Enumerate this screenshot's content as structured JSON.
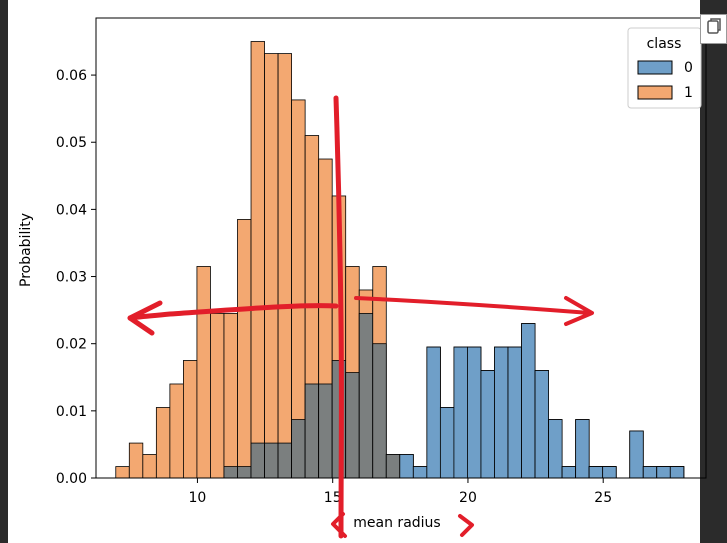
{
  "copy_button": {
    "icon": "copy-icon"
  },
  "colors": {
    "class0": "#6f9fc8",
    "class1": "#f3a871",
    "overlap": "#7b7f7f",
    "annotation": "#e21e2a",
    "background_outer": "#2b2b2b",
    "plot_bg": "#ffffff"
  },
  "chart_data": {
    "type": "bar",
    "title": "",
    "xlabel": "mean radius",
    "ylabel": "Probability",
    "xlim": [
      6.25,
      28.8
    ],
    "ylim": [
      0,
      0.0685
    ],
    "x_ticks": [
      10,
      15,
      20,
      25
    ],
    "x_tick_labels": [
      "10",
      "15",
      "20",
      "25"
    ],
    "y_ticks": [
      0.0,
      0.01,
      0.02,
      0.03,
      0.04,
      0.05,
      0.06
    ],
    "y_tick_labels": [
      "0.00",
      "0.01",
      "0.02",
      "0.03",
      "0.04",
      "0.05",
      "0.06"
    ],
    "grid": false,
    "legend": {
      "title": "class",
      "placement": "top-right",
      "entries": [
        {
          "label": "0",
          "series": 0
        },
        {
          "label": "1",
          "series": 1
        }
      ]
    },
    "bins": {
      "start": 6.981,
      "width": 0.5,
      "count": 43
    },
    "series": [
      {
        "name": "0",
        "values": [
          0,
          0,
          0,
          0,
          0,
          0,
          0,
          0,
          0.0017,
          0.0017,
          0.0052,
          0.0052,
          0.0052,
          0.0087,
          0.014,
          0.014,
          0.0175,
          0.0157,
          0.0245,
          0.02,
          0.0035,
          0.0035,
          0.0017,
          0.0195,
          0.0105,
          0.0195,
          0.0195,
          0.016,
          0.0195,
          0.0195,
          0.023,
          0.016,
          0.0087,
          0.0017,
          0.0087,
          0.0017,
          0.0017,
          0,
          0.007,
          0.0017,
          0.0017,
          0.0017,
          0
        ]
      },
      {
        "name": "1",
        "values": [
          0.0017,
          0.0052,
          0.0035,
          0.0105,
          0.014,
          0.0175,
          0.0315,
          0.0245,
          0.0245,
          0.0385,
          0.065,
          0.0632,
          0.0632,
          0.0563,
          0.051,
          0.0475,
          0.042,
          0.0315,
          0.028,
          0.0315,
          0.0035,
          0,
          0,
          0,
          0,
          0,
          0,
          0,
          0,
          0,
          0,
          0,
          0,
          0,
          0,
          0,
          0,
          0,
          0,
          0,
          0,
          0,
          0
        ]
      }
    ],
    "extra_bins_class0": [
      {
        "x_start": 26.98,
        "value": 0.0017
      },
      {
        "x_start": 27.48,
        "value": 0.0017
      },
      {
        "x_start": 24.48,
        "value": 0.0017
      },
      {
        "x_start": 24.98,
        "value": 0.0017
      }
    ]
  }
}
